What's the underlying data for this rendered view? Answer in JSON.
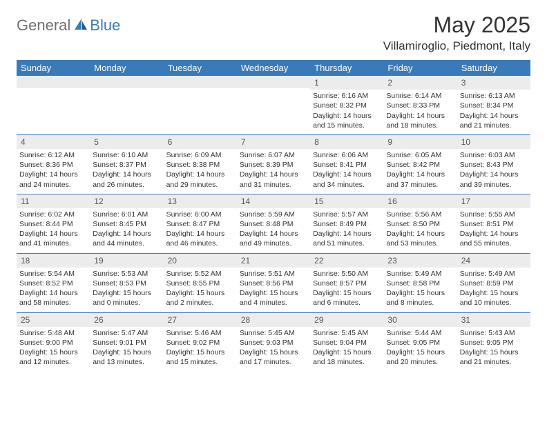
{
  "brand": {
    "part1": "General",
    "part2": "Blue"
  },
  "title": "May 2025",
  "location": "Villamiroglio, Piedmont, Italy",
  "colors": {
    "header_bg": "#3a7ab8",
    "header_fg": "#ffffff",
    "daynum_bg": "#ececec",
    "rule": "#3a7ab8",
    "logo_gray": "#6f6f6f",
    "logo_blue": "#3a7ab8"
  },
  "day_names": [
    "Sunday",
    "Monday",
    "Tuesday",
    "Wednesday",
    "Thursday",
    "Friday",
    "Saturday"
  ],
  "weeks": [
    [
      {
        "n": "",
        "sr": "",
        "ss": "",
        "dl": ""
      },
      {
        "n": "",
        "sr": "",
        "ss": "",
        "dl": ""
      },
      {
        "n": "",
        "sr": "",
        "ss": "",
        "dl": ""
      },
      {
        "n": "",
        "sr": "",
        "ss": "",
        "dl": ""
      },
      {
        "n": "1",
        "sr": "Sunrise: 6:16 AM",
        "ss": "Sunset: 8:32 PM",
        "dl": "Daylight: 14 hours and 15 minutes."
      },
      {
        "n": "2",
        "sr": "Sunrise: 6:14 AM",
        "ss": "Sunset: 8:33 PM",
        "dl": "Daylight: 14 hours and 18 minutes."
      },
      {
        "n": "3",
        "sr": "Sunrise: 6:13 AM",
        "ss": "Sunset: 8:34 PM",
        "dl": "Daylight: 14 hours and 21 minutes."
      }
    ],
    [
      {
        "n": "4",
        "sr": "Sunrise: 6:12 AM",
        "ss": "Sunset: 8:36 PM",
        "dl": "Daylight: 14 hours and 24 minutes."
      },
      {
        "n": "5",
        "sr": "Sunrise: 6:10 AM",
        "ss": "Sunset: 8:37 PM",
        "dl": "Daylight: 14 hours and 26 minutes."
      },
      {
        "n": "6",
        "sr": "Sunrise: 6:09 AM",
        "ss": "Sunset: 8:38 PM",
        "dl": "Daylight: 14 hours and 29 minutes."
      },
      {
        "n": "7",
        "sr": "Sunrise: 6:07 AM",
        "ss": "Sunset: 8:39 PM",
        "dl": "Daylight: 14 hours and 31 minutes."
      },
      {
        "n": "8",
        "sr": "Sunrise: 6:06 AM",
        "ss": "Sunset: 8:41 PM",
        "dl": "Daylight: 14 hours and 34 minutes."
      },
      {
        "n": "9",
        "sr": "Sunrise: 6:05 AM",
        "ss": "Sunset: 8:42 PM",
        "dl": "Daylight: 14 hours and 37 minutes."
      },
      {
        "n": "10",
        "sr": "Sunrise: 6:03 AM",
        "ss": "Sunset: 8:43 PM",
        "dl": "Daylight: 14 hours and 39 minutes."
      }
    ],
    [
      {
        "n": "11",
        "sr": "Sunrise: 6:02 AM",
        "ss": "Sunset: 8:44 PM",
        "dl": "Daylight: 14 hours and 41 minutes."
      },
      {
        "n": "12",
        "sr": "Sunrise: 6:01 AM",
        "ss": "Sunset: 8:45 PM",
        "dl": "Daylight: 14 hours and 44 minutes."
      },
      {
        "n": "13",
        "sr": "Sunrise: 6:00 AM",
        "ss": "Sunset: 8:47 PM",
        "dl": "Daylight: 14 hours and 46 minutes."
      },
      {
        "n": "14",
        "sr": "Sunrise: 5:59 AM",
        "ss": "Sunset: 8:48 PM",
        "dl": "Daylight: 14 hours and 49 minutes."
      },
      {
        "n": "15",
        "sr": "Sunrise: 5:57 AM",
        "ss": "Sunset: 8:49 PM",
        "dl": "Daylight: 14 hours and 51 minutes."
      },
      {
        "n": "16",
        "sr": "Sunrise: 5:56 AM",
        "ss": "Sunset: 8:50 PM",
        "dl": "Daylight: 14 hours and 53 minutes."
      },
      {
        "n": "17",
        "sr": "Sunrise: 5:55 AM",
        "ss": "Sunset: 8:51 PM",
        "dl": "Daylight: 14 hours and 55 minutes."
      }
    ],
    [
      {
        "n": "18",
        "sr": "Sunrise: 5:54 AM",
        "ss": "Sunset: 8:52 PM",
        "dl": "Daylight: 14 hours and 58 minutes."
      },
      {
        "n": "19",
        "sr": "Sunrise: 5:53 AM",
        "ss": "Sunset: 8:53 PM",
        "dl": "Daylight: 15 hours and 0 minutes."
      },
      {
        "n": "20",
        "sr": "Sunrise: 5:52 AM",
        "ss": "Sunset: 8:55 PM",
        "dl": "Daylight: 15 hours and 2 minutes."
      },
      {
        "n": "21",
        "sr": "Sunrise: 5:51 AM",
        "ss": "Sunset: 8:56 PM",
        "dl": "Daylight: 15 hours and 4 minutes."
      },
      {
        "n": "22",
        "sr": "Sunrise: 5:50 AM",
        "ss": "Sunset: 8:57 PM",
        "dl": "Daylight: 15 hours and 6 minutes."
      },
      {
        "n": "23",
        "sr": "Sunrise: 5:49 AM",
        "ss": "Sunset: 8:58 PM",
        "dl": "Daylight: 15 hours and 8 minutes."
      },
      {
        "n": "24",
        "sr": "Sunrise: 5:49 AM",
        "ss": "Sunset: 8:59 PM",
        "dl": "Daylight: 15 hours and 10 minutes."
      }
    ],
    [
      {
        "n": "25",
        "sr": "Sunrise: 5:48 AM",
        "ss": "Sunset: 9:00 PM",
        "dl": "Daylight: 15 hours and 12 minutes."
      },
      {
        "n": "26",
        "sr": "Sunrise: 5:47 AM",
        "ss": "Sunset: 9:01 PM",
        "dl": "Daylight: 15 hours and 13 minutes."
      },
      {
        "n": "27",
        "sr": "Sunrise: 5:46 AM",
        "ss": "Sunset: 9:02 PM",
        "dl": "Daylight: 15 hours and 15 minutes."
      },
      {
        "n": "28",
        "sr": "Sunrise: 5:45 AM",
        "ss": "Sunset: 9:03 PM",
        "dl": "Daylight: 15 hours and 17 minutes."
      },
      {
        "n": "29",
        "sr": "Sunrise: 5:45 AM",
        "ss": "Sunset: 9:04 PM",
        "dl": "Daylight: 15 hours and 18 minutes."
      },
      {
        "n": "30",
        "sr": "Sunrise: 5:44 AM",
        "ss": "Sunset: 9:05 PM",
        "dl": "Daylight: 15 hours and 20 minutes."
      },
      {
        "n": "31",
        "sr": "Sunrise: 5:43 AM",
        "ss": "Sunset: 9:05 PM",
        "dl": "Daylight: 15 hours and 21 minutes."
      }
    ]
  ]
}
